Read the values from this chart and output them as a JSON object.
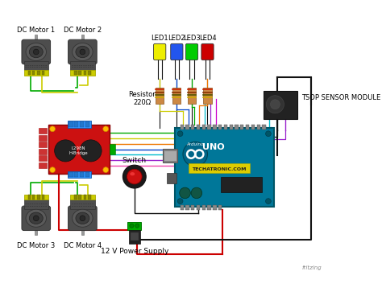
{
  "bg_color": "#ffffff",
  "fig_width": 4.74,
  "fig_height": 3.68,
  "dpi": 100,
  "labels": {
    "motor1": "DC Motor 1",
    "motor2": "DC Motor 2",
    "motor3": "DC Motor 3",
    "motor4": "DC Motor 4",
    "led1": "LED1",
    "led2": "LED2",
    "led3": "LED3",
    "led4": "LED4",
    "resistor": "Resistor\n220Ω",
    "switch": "Switch",
    "power": "12 V Power Supply",
    "tsop": "TSOP SENSOR MODULE",
    "fritzing": "fritzing",
    "hbridge": "L298N\nH-Bridge"
  },
  "colors": {
    "motor_body": "#4d4d4d",
    "motor_body2": "#5a5a5a",
    "motor_cap": "#cccc00",
    "motor_shaft": "#999999",
    "hbridge_red": "#cc1111",
    "hbridge_blue": "#3399ff",
    "arduino_body": "#007799",
    "arduino_dark": "#005566",
    "led_yellow": "#eeee00",
    "led_blue": "#2255ee",
    "led_green": "#00cc00",
    "led_red": "#cc0000",
    "wire_green": "#00aa00",
    "wire_yellow": "#cccc00",
    "wire_black": "#111111",
    "wire_red": "#cc0000",
    "wire_blue": "#0044cc",
    "wire_cyan": "#00bbcc",
    "wire_purple": "#9922cc",
    "wire_orange": "#ee7700",
    "wire_pink": "#ee44aa",
    "wire_magenta": "#cc00cc",
    "switch_red": "#cc1111",
    "resistor_body": "#cc8844",
    "power_green": "#00aa00",
    "text_color": "#000000",
    "gray_connector": "#888888"
  }
}
